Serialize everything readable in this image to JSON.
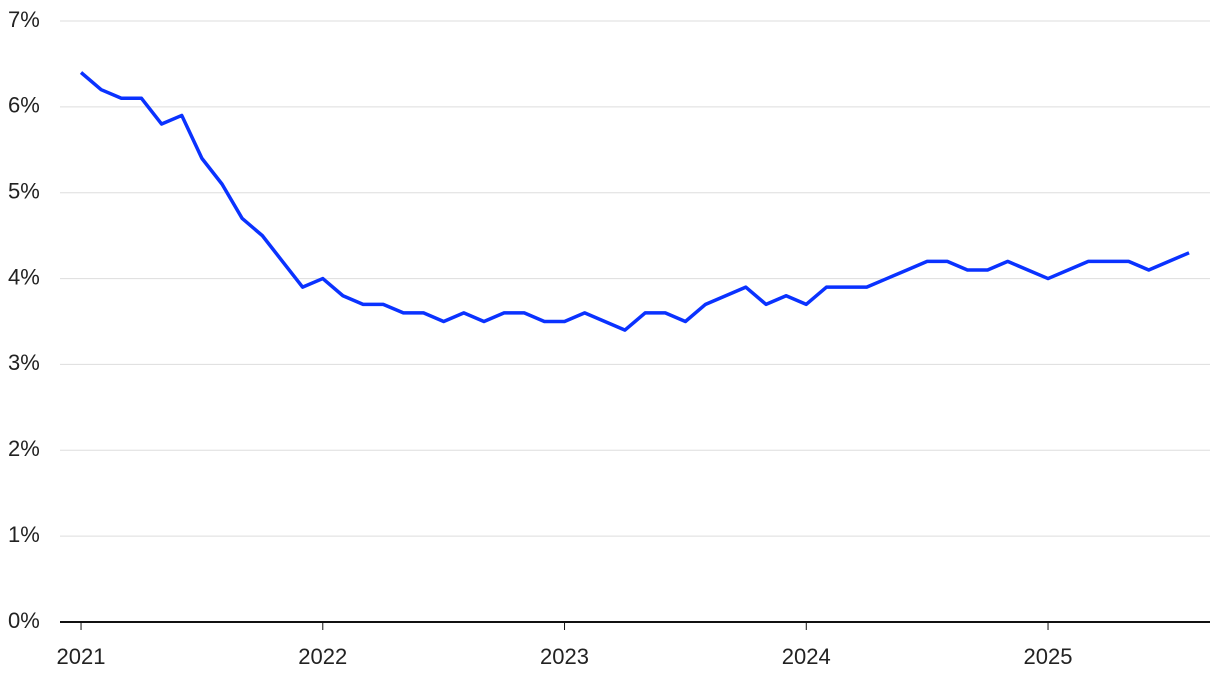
{
  "chart_data": {
    "type": "line",
    "x": [
      2021,
      2021.0833,
      2021.1667,
      2021.25,
      2021.3333,
      2021.4167,
      2021.5,
      2021.5833,
      2021.6667,
      2021.75,
      2021.8333,
      2021.9167,
      2022,
      2022.0833,
      2022.1667,
      2022.25,
      2022.3333,
      2022.4167,
      2022.5,
      2022.5833,
      2022.6667,
      2022.75,
      2022.8333,
      2022.9167,
      2023,
      2023.0833,
      2023.1667,
      2023.25,
      2023.3333,
      2023.4167,
      2023.5,
      2023.5833,
      2023.6667,
      2023.75,
      2023.8333,
      2023.9167,
      2024,
      2024.0833,
      2024.1667,
      2024.25,
      2024.3333,
      2024.4167,
      2024.5,
      2024.5833,
      2024.6667,
      2024.75,
      2024.8333,
      2024.9167,
      2025,
      2025.0833,
      2025.1667,
      2025.25,
      2025.3333,
      2025.4167,
      2025.5,
      2025.5833
    ],
    "series": [
      {
        "color": "#0a32ff",
        "values": [
          6.4,
          6.2,
          6.1,
          6.1,
          5.8,
          5.9,
          5.4,
          5.1,
          4.7,
          4.5,
          4.2,
          3.9,
          4.0,
          3.8,
          3.7,
          3.7,
          3.6,
          3.6,
          3.5,
          3.6,
          3.5,
          3.6,
          3.6,
          3.5,
          3.5,
          3.6,
          3.5,
          3.4,
          3.6,
          3.6,
          3.5,
          3.7,
          3.8,
          3.9,
          3.7,
          3.8,
          3.7,
          3.9,
          3.9,
          3.9,
          4.0,
          4.1,
          4.2,
          4.2,
          4.1,
          4.1,
          4.2,
          4.1,
          4.0,
          4.1,
          4.2,
          4.2,
          4.2,
          4.1,
          4.2,
          4.3
        ]
      }
    ],
    "xlim": [
      2020.913,
      2025.67
    ],
    "xticks": [
      2021,
      2022,
      2023,
      2024,
      2025
    ],
    "ylim": [
      0,
      7
    ],
    "yticks": [
      {
        "value": 0,
        "label": "0%"
      },
      {
        "value": 1,
        "label": "1%"
      },
      {
        "value": 2,
        "label": "2%"
      },
      {
        "value": 3,
        "label": "3%"
      },
      {
        "value": 4,
        "label": "4%"
      },
      {
        "value": 5,
        "label": "5%"
      },
      {
        "value": 6,
        "label": "6%"
      },
      {
        "value": 7,
        "label": "7%"
      }
    ],
    "grid": true
  }
}
